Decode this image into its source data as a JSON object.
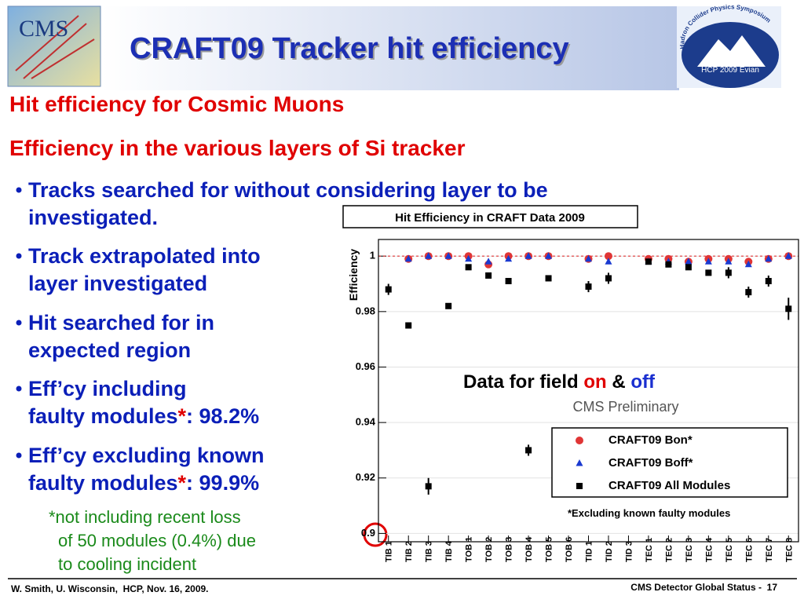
{
  "header": {
    "title": "CRAFT09 Tracker hit efficiency"
  },
  "logos": {
    "cms": "CMS",
    "hcp_ring": "Hadron Collider Physics Symposium",
    "hcp_badge": "HCP 2009 Evian"
  },
  "headings": [
    "Hit efficiency for Cosmic Muons",
    "Efficiency in the various layers of Si tracker"
  ],
  "bullets": [
    {
      "lines": [
        "Tracks searched for without considering layer to be",
        "investigated."
      ]
    },
    {
      "lines": [
        "Track extrapolated into",
        "layer investigated"
      ]
    },
    {
      "lines": [
        "Hit searched for in",
        "expected region"
      ]
    },
    {
      "lines": [
        "Eff’cy including",
        [
          "faulty modules",
          {
            "text": "*",
            "color": "#e00000"
          },
          ": 98.2%"
        ]
      ]
    },
    {
      "lines": [
        "Eff’cy excluding known",
        [
          "faulty modules",
          {
            "text": "*",
            "color": "#e00000"
          },
          ": 99.9%"
        ]
      ]
    }
  ],
  "footnote": [
    "*not including recent loss",
    "of 50 modules (0.4%) due",
    "to cooling incident"
  ],
  "footer": {
    "left": "W. Smith, U. Wisconsin,  HCP, Nov. 16, 2009.",
    "right": "CMS Detector Global Status -  17"
  },
  "chart_data": {
    "type": "scatter",
    "title": "Hit Efficiency in CRAFT Data 2009",
    "y_label": "Efficiency",
    "categories": [
      "TIB 1",
      "TIB 2",
      "TIB 3",
      "TIB 4",
      "TOB 1",
      "TOB 2",
      "TOB 3",
      "TOB 4",
      "TOB 5",
      "TOB 6",
      "TID 1",
      "TID 2",
      "TID 3",
      "TEC 1",
      "TEC 2",
      "TEC 3",
      "TEC 4",
      "TEC 5",
      "TEC 6",
      "TEC 7",
      "TEC 8"
    ],
    "series": [
      {
        "name": "CRAFT09 Bon*",
        "color": "#e03535",
        "marker": "circle",
        "values": [
          null,
          0.999,
          1.0,
          1.0,
          1.0,
          0.997,
          1.0,
          1.0,
          1.0,
          null,
          0.999,
          1.0,
          null,
          0.999,
          0.999,
          0.998,
          0.999,
          0.999,
          0.998,
          0.999,
          1.0
        ]
      },
      {
        "name": "CRAFT09 Boff*",
        "color": "#1a3ad0",
        "marker": "triangle",
        "values": [
          null,
          0.999,
          1.0,
          1.0,
          0.999,
          0.998,
          0.999,
          1.0,
          1.0,
          null,
          0.999,
          0.998,
          null,
          0.998,
          0.998,
          0.998,
          0.998,
          0.998,
          0.997,
          0.999,
          1.0
        ]
      },
      {
        "name": "CRAFT09 All Modules",
        "color": "#000000",
        "marker": "square",
        "values": [
          0.988,
          0.975,
          0.917,
          0.982,
          0.996,
          0.993,
          0.991,
          0.93,
          0.992,
          null,
          0.989,
          0.992,
          null,
          0.998,
          0.997,
          0.996,
          0.994,
          0.994,
          0.987,
          0.991,
          0.981
        ],
        "errors": [
          0.002,
          0.001,
          0.003,
          0.001,
          0.001,
          0.001,
          0.001,
          0.002,
          0.001,
          null,
          0.002,
          0.002,
          null,
          0.001,
          0.001,
          0.001,
          0.001,
          0.002,
          0.002,
          0.002,
          0.004
        ]
      }
    ],
    "ylim": [
      0.897,
      1.006
    ],
    "yticks": [
      0.9,
      0.92,
      0.94,
      0.96,
      0.98,
      1
    ],
    "grid": true,
    "reference_line": 1,
    "reference_color": "#e03535",
    "annotations": [
      [
        "Data for field ",
        {
          "text": "on",
          "color": "#e00000"
        },
        " & ",
        {
          "text": "off",
          "color": "#1a2fd0"
        }
      ],
      "CMS Preliminary",
      "*Excluding known faulty modules"
    ]
  }
}
